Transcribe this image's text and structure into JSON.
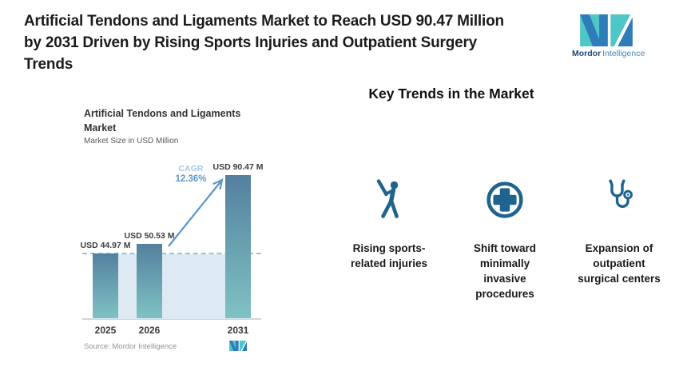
{
  "header": {
    "title_lines": [
      "Artificial Tendons and Ligaments Market to Reach USD 90.47 Million",
      "by 2031 Driven by Rising Sports Injuries and Outpatient Surgery",
      "Trends"
    ]
  },
  "brand": {
    "name_primary": "Mordor",
    "name_secondary": "Intelligence",
    "colors": {
      "teal": "#4fc6c7",
      "blue": "#2e7cb8",
      "navy": "#1b4b77",
      "light_blue": "#4189c0"
    }
  },
  "chart": {
    "title_lines": [
      "Artificial Tendons and Ligaments",
      "Market"
    ],
    "subtitle": "Market Size in USD Million",
    "cagr_label": "CAGR",
    "cagr_value": "12.36%",
    "source": "Source: Mordor Intelligence"
  },
  "chart_data": {
    "type": "bar",
    "title": "Artificial Tendons and Ligaments Market",
    "subtitle": "Market Size in USD Million",
    "unit": "USD Million",
    "categories": [
      "2025",
      "2026",
      "2031"
    ],
    "values": [
      44.97,
      50.53,
      90.47
    ],
    "value_labels": [
      "USD 44.97 M",
      "USD 50.53 M",
      "USD 90.47 M"
    ],
    "cagr_percent": 12.36,
    "baseline_reference_value": 44.97,
    "ylim": [
      7.4,
      98
    ],
    "grid": false,
    "legend": false,
    "colors": {
      "bar_top": "#54809f",
      "bar_bottom": "#7fc2c3",
      "band": "#dde9f3",
      "dashed_line": "#9cc0da",
      "arrow": "#5b96c8",
      "cagr_label": "#a5c8e3",
      "cagr_value": "#5e98c9"
    }
  },
  "trends": {
    "heading": "Key Trends in the Market",
    "icon_color": "#1f638f",
    "items": [
      {
        "icon": "baseball-player-icon",
        "label": "Rising sports-related injuries"
      },
      {
        "icon": "medical-cross-circle-icon",
        "label": "Shift toward minimally invasive procedures"
      },
      {
        "icon": "stethoscope-icon",
        "label": "Expansion of outpatient surgical centers"
      }
    ]
  }
}
